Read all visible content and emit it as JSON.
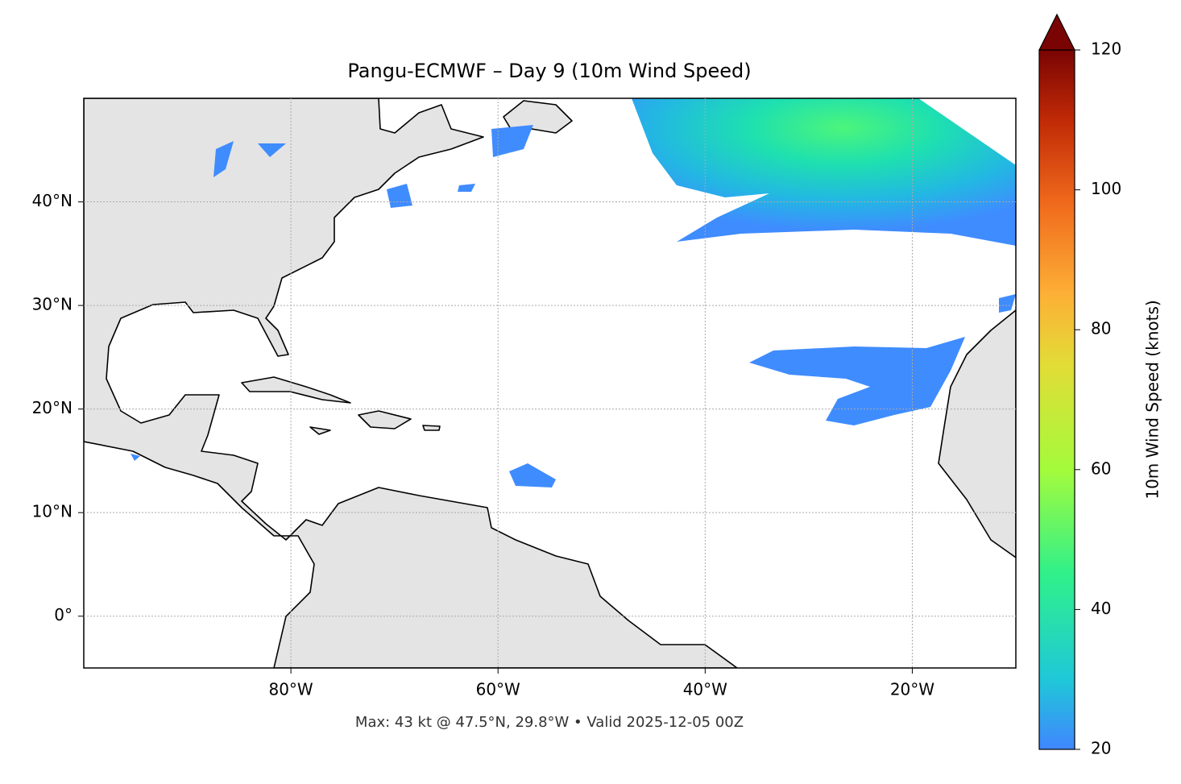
{
  "chart_data": {
    "type": "map",
    "title": "Pangu-ECMWF – Day 9 (10m Wind Speed)",
    "annotation": "Max: 43 kt @ 47.5°N, 29.8°W • Valid 2025-12-05 00Z",
    "xlim": [
      -100,
      -10
    ],
    "ylim": [
      -5,
      50
    ],
    "xticks": [
      {
        "value": -80,
        "label": "80°W"
      },
      {
        "value": -60,
        "label": "60°W"
      },
      {
        "value": -40,
        "label": "40°W"
      },
      {
        "value": -20,
        "label": "20°W"
      }
    ],
    "yticks": [
      {
        "value": 0,
        "label": "0°"
      },
      {
        "value": 10,
        "label": "10°N"
      },
      {
        "value": 20,
        "label": "20°N"
      },
      {
        "value": 30,
        "label": "30°N"
      },
      {
        "value": 40,
        "label": "40°N"
      }
    ],
    "grid": true,
    "colorbar": {
      "label": "10m Wind Speed (knots)",
      "lim": [
        20,
        120
      ],
      "ticks": [
        20,
        40,
        60,
        80,
        100,
        120
      ],
      "extend": "max"
    }
  }
}
